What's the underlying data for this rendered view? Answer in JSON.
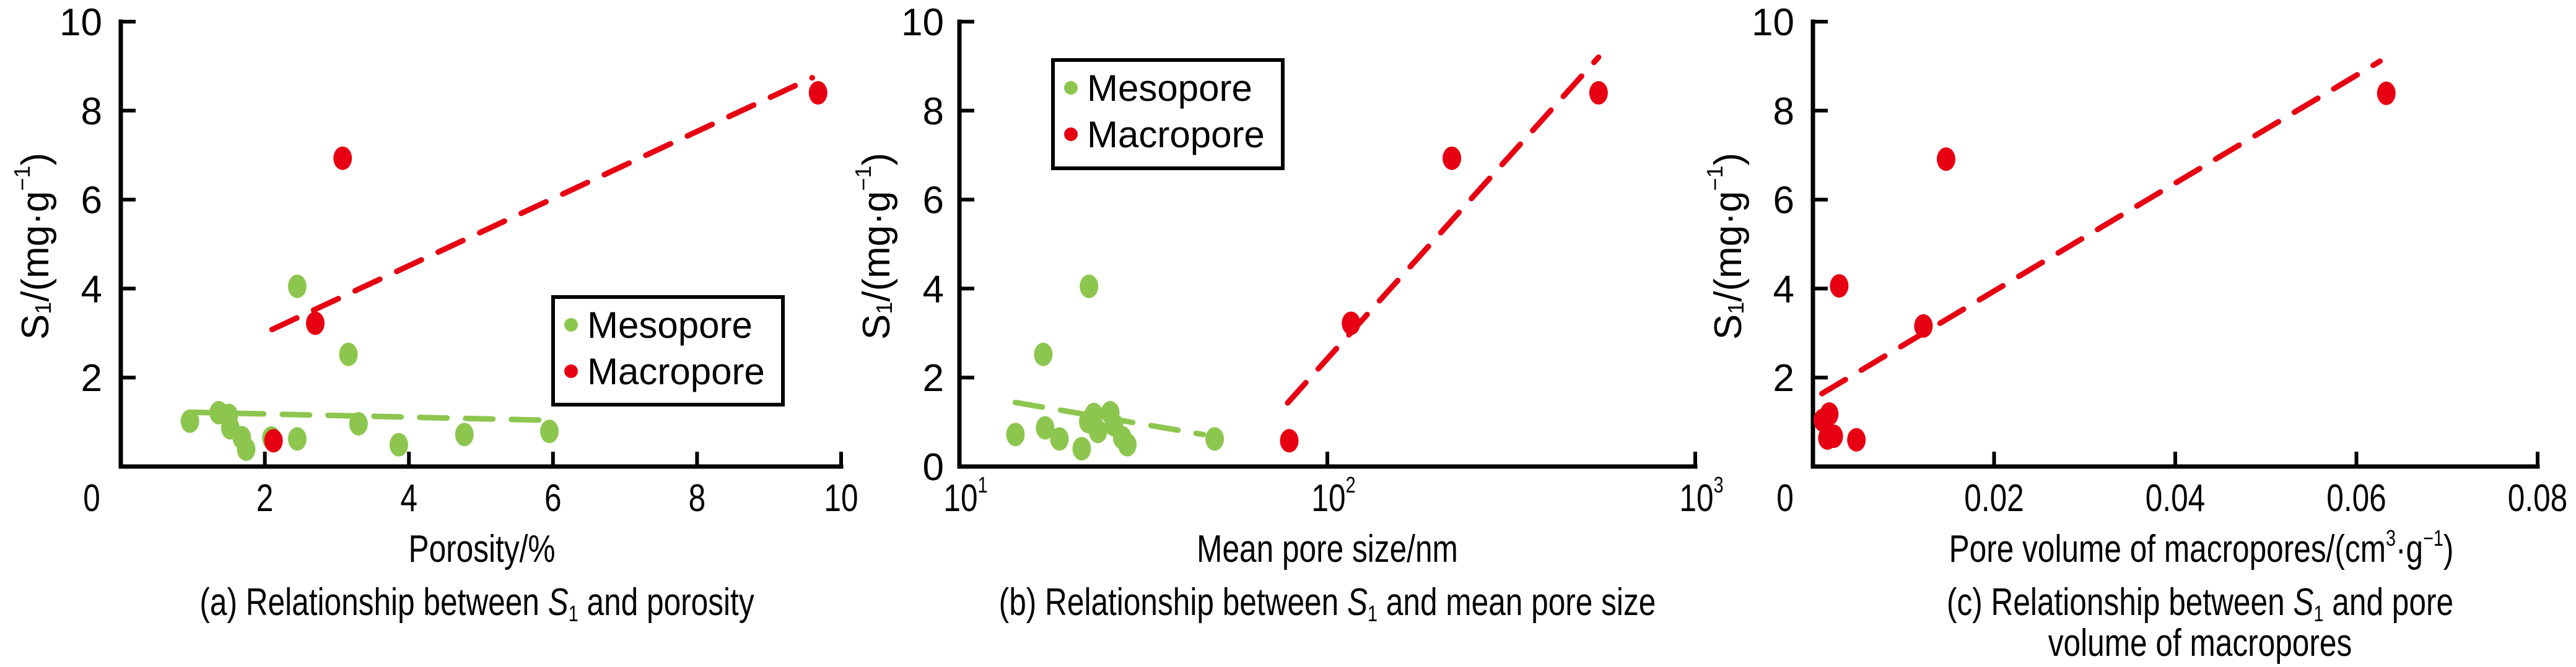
{
  "colors": {
    "mesopore": "#8DC64F",
    "macropore": "#E60012",
    "axis": "#000000"
  },
  "chart_data": [
    {
      "id": "a",
      "type": "scatter",
      "title": "(a) Relationship between S1 and porosity",
      "caption": {
        "prefix": "(a) Relationship between ",
        "symbol": "S",
        "subscript": "1",
        "suffix": " and porosity",
        "line2": ""
      },
      "xlabel": "Porosity/%",
      "ylabel": {
        "main": "S",
        "sub": "1",
        "rest": "/(mg·g",
        "sup": "−1",
        "close": ")"
      },
      "xscale": "linear",
      "xlim": [
        0,
        10
      ],
      "ylim": [
        0,
        10
      ],
      "xticks": [
        {
          "v": 2,
          "label": "2"
        },
        {
          "v": 4,
          "label": "4"
        },
        {
          "v": 6,
          "label": "6"
        },
        {
          "v": 8,
          "label": "8"
        },
        {
          "v": 10,
          "label": "10"
        }
      ],
      "origin_label": "0",
      "yticks": [
        {
          "v": 2,
          "label": "2"
        },
        {
          "v": 4,
          "label": "4"
        },
        {
          "v": 6,
          "label": "6"
        },
        {
          "v": 8,
          "label": "8"
        },
        {
          "v": 10,
          "label": "10"
        }
      ],
      "legend": {
        "position": "center-right",
        "entries": [
          {
            "name": "Mesopore",
            "color": "#8DC64F"
          },
          {
            "name": "Macropore",
            "color": "#E60012"
          }
        ]
      },
      "grid": false,
      "series": [
        {
          "name": "Mesopore",
          "color": "#8DC64F",
          "points": [
            [
              0.96,
              1.02
            ],
            [
              1.36,
              1.21
            ],
            [
              1.5,
              1.15
            ],
            [
              1.52,
              0.87
            ],
            [
              1.68,
              0.65
            ],
            [
              1.74,
              0.39
            ],
            [
              2.09,
              0.64
            ],
            [
              2.45,
              0.62
            ],
            [
              2.45,
              4.05
            ],
            [
              3.16,
              2.52
            ],
            [
              3.3,
              0.96
            ],
            [
              3.86,
              0.49
            ],
            [
              4.77,
              0.72
            ],
            [
              5.95,
              0.79
            ]
          ],
          "trendline": [
            [
              0.97,
              1.22
            ],
            [
              5.92,
              1.04
            ]
          ]
        },
        {
          "name": "Macropore",
          "color": "#E60012",
          "points": [
            [
              2.12,
              0.58
            ],
            [
              2.7,
              3.22
            ],
            [
              3.08,
              6.93
            ],
            [
              9.68,
              8.4
            ]
          ],
          "trendline": [
            [
              2.1,
              3.08
            ],
            [
              9.6,
              8.74
            ]
          ]
        }
      ]
    },
    {
      "id": "b",
      "type": "scatter",
      "title": "(b) Relationship between S1 and mean pore size",
      "caption": {
        "prefix": "(b) Relationship between ",
        "symbol": "S",
        "subscript": "1",
        "suffix": " and mean pore size",
        "line2": ""
      },
      "xlabel": "Mean pore size/nm",
      "ylabel": {
        "main": "S",
        "sub": "1",
        "rest": "/(mg·g",
        "sup": "−1",
        "close": ")"
      },
      "xscale": "log",
      "xlim": [
        10,
        1000
      ],
      "ylim": [
        0,
        10
      ],
      "xticks": [
        {
          "v": 10,
          "base": "10",
          "exp": "1"
        },
        {
          "v": 100,
          "base": "10",
          "exp": "2"
        },
        {
          "v": 1000,
          "base": "10",
          "exp": "3"
        }
      ],
      "origin_label": "0",
      "yticks": [
        {
          "v": 2,
          "label": "2"
        },
        {
          "v": 4,
          "label": "4"
        },
        {
          "v": 6,
          "label": "6"
        },
        {
          "v": 8,
          "label": "8"
        },
        {
          "v": 10,
          "label": "10"
        }
      ],
      "legend": {
        "position": "top-left",
        "entries": [
          {
            "name": "Mesopore",
            "color": "#8DC64F"
          },
          {
            "name": "Macropore",
            "color": "#E60012"
          }
        ]
      },
      "grid": false,
      "series": [
        {
          "name": "Mesopore",
          "color": "#8DC64F",
          "points": [
            [
              14.2,
              0.72
            ],
            [
              16.9,
              2.52
            ],
            [
              17.1,
              0.87
            ],
            [
              18.7,
              0.62
            ],
            [
              21.5,
              0.4
            ],
            [
              22.4,
              1.01
            ],
            [
              22.5,
              4.05
            ],
            [
              23.2,
              1.17
            ],
            [
              23.8,
              0.79
            ],
            [
              25.7,
              1.21
            ],
            [
              26.3,
              0.94
            ],
            [
              27.7,
              0.65
            ],
            [
              28.6,
              0.49
            ],
            [
              49.4,
              0.62
            ]
          ],
          "trendline": [
            [
              14.2,
              1.44
            ],
            [
              46,
              0.72
            ]
          ]
        },
        {
          "name": "Macropore",
          "color": "#E60012",
          "points": [
            [
              78.8,
              0.58
            ],
            [
              116,
              3.22
            ],
            [
              218,
              6.93
            ],
            [
              546,
              8.4
            ]
          ],
          "trendline": [
            [
              78,
              1.43
            ],
            [
              546,
              9.2
            ]
          ]
        }
      ]
    },
    {
      "id": "c",
      "type": "scatter",
      "title": "(c) Relationship between S1 and pore volume of macropores",
      "caption": {
        "prefix": "(c) Relationship between ",
        "symbol": "S",
        "subscript": "1",
        "suffix": " and pore",
        "line2": "volume of macropores"
      },
      "xlabel": {
        "main": "Pore volume of macropores/(cm",
        "sup1": "3",
        "mid": "·g",
        "sup2": "−1",
        "close": ")"
      },
      "ylabel": {
        "main": "S",
        "sub": "1",
        "rest": "/(mg·g",
        "sup": "−1",
        "close": ")"
      },
      "xscale": "linear",
      "xlim": [
        0,
        0.08
      ],
      "ylim": [
        0,
        10
      ],
      "xticks": [
        {
          "v": 0.02,
          "label": "0.02"
        },
        {
          "v": 0.04,
          "label": "0.04"
        },
        {
          "v": 0.06,
          "label": "0.06"
        },
        {
          "v": 0.08,
          "label": "0.08"
        }
      ],
      "origin_label": "0",
      "yticks": [
        {
          "v": 2,
          "label": "2"
        },
        {
          "v": 4,
          "label": "4"
        },
        {
          "v": 6,
          "label": "6"
        },
        {
          "v": 8,
          "label": "8"
        },
        {
          "v": 10,
          "label": "10"
        }
      ],
      "legend": null,
      "grid": false,
      "series": [
        {
          "name": "Macropore",
          "color": "#E60012",
          "points": [
            [
              0.0011,
              1.04
            ],
            [
              0.0018,
              1.18
            ],
            [
              0.0016,
              0.64
            ],
            [
              0.0023,
              0.68
            ],
            [
              0.0048,
              0.6
            ],
            [
              0.0029,
              4.06
            ],
            [
              0.0122,
              3.16
            ],
            [
              0.0147,
              6.91
            ],
            [
              0.0633,
              8.39
            ]
          ],
          "trendline": [
            [
              0.001,
              1.64
            ],
            [
              0.0626,
              9.11
            ]
          ]
        }
      ]
    }
  ]
}
